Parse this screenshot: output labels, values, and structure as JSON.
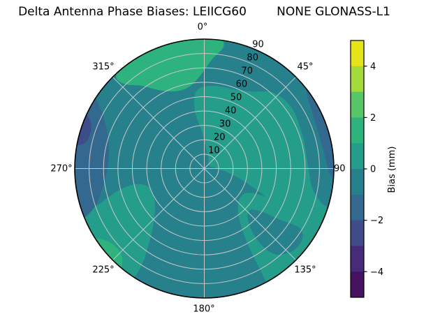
{
  "title": "Delta Antenna Phase Biases: LEIICG60        NONE GLONASS-L1",
  "polar": {
    "angular_labels": [
      "0°",
      "45°",
      "90",
      "135°",
      "180°",
      "225°",
      "270°",
      "315°"
    ],
    "radial_labels": [
      "10",
      "20",
      "30",
      "40",
      "50",
      "60",
      "70",
      "80",
      "90"
    ]
  },
  "colorbar": {
    "label": "Bias (mm)",
    "tick_labels": [
      "4",
      "2",
      "0",
      "−2",
      "−4"
    ],
    "tick_values": [
      4,
      2,
      0,
      -2,
      -4
    ],
    "range_mm": [
      -5,
      5
    ],
    "band_colors_top_to_bottom": [
      "#e5e419",
      "#a2da37",
      "#56c667",
      "#2eb37e",
      "#249d8a",
      "#27818d",
      "#33698e",
      "#3f4c8a",
      "#472a7a",
      "#46125f"
    ]
  },
  "chart_data": {
    "type": "polar_contour",
    "title": "Delta Antenna Phase Biases: LEIICG60        NONE GLONASS-L1",
    "value_label": "Bias (mm)",
    "value_range_mm": [
      -5,
      5
    ],
    "contour_level_step_mm": 1,
    "theta_direction": "clockwise",
    "theta_zero_location": "top",
    "theta_ticks_deg": [
      0,
      45,
      90,
      135,
      180,
      225,
      270,
      315
    ],
    "r_ticks": [
      10,
      20,
      30,
      40,
      50,
      60,
      70,
      80,
      90
    ],
    "r_range": [
      0,
      90
    ],
    "grid_color": "#c8c8c8",
    "outline_color": "#000000",
    "background_band": "-1to0",
    "band_colors": {
      "-5to-4": "#46125f",
      "-4to-3": "#472a7a",
      "-3to-2": "#3f4c8a",
      "-2to-1": "#33698e",
      "-1to0": "#27818d",
      "0to1": "#249d8a",
      "1to2": "#2eb37e",
      "2to3": "#56c667",
      "3to4": "#a2da37",
      "4to5": "#e5e419"
    },
    "regions": [
      {
        "band": "0to1",
        "name": "upper-right-interior",
        "points_az_r": [
          [
            352,
            50
          ],
          [
            357,
            56
          ],
          [
            8,
            58
          ],
          [
            22,
            59
          ],
          [
            32,
            63
          ],
          [
            42,
            71
          ],
          [
            55,
            74
          ],
          [
            72,
            72
          ],
          [
            88,
            72
          ],
          [
            100,
            76
          ],
          [
            106,
            84
          ],
          [
            109,
            93
          ],
          [
            118,
            93
          ],
          [
            121,
            78
          ],
          [
            119,
            62
          ],
          [
            115,
            48
          ],
          [
            111,
            36
          ],
          [
            106,
            26
          ],
          [
            99,
            16
          ],
          [
            90,
            9
          ],
          [
            76,
            5
          ],
          [
            58,
            4
          ],
          [
            38,
            5
          ],
          [
            18,
            9
          ],
          [
            4,
            15
          ],
          [
            356,
            26
          ],
          [
            351,
            38
          ]
        ]
      },
      {
        "band": "0to1",
        "name": "lower-right-sector",
        "points_az_r": [
          [
            113,
            93
          ],
          [
            125,
            93
          ],
          [
            137,
            93
          ],
          [
            150,
            93
          ],
          [
            151,
            78
          ],
          [
            150,
            60
          ],
          [
            146,
            44
          ],
          [
            138,
            35
          ],
          [
            127,
            32
          ],
          [
            118,
            36
          ],
          [
            114,
            50
          ],
          [
            112,
            70
          ]
        ]
      },
      {
        "band": "0to1",
        "name": "lower-left-sector",
        "points_az_r": [
          [
            214,
            93
          ],
          [
            226,
            93
          ],
          [
            238,
            93
          ],
          [
            248,
            90
          ],
          [
            252,
            74
          ],
          [
            256,
            60
          ],
          [
            257,
            48
          ],
          [
            252,
            41
          ],
          [
            242,
            40
          ],
          [
            231,
            44
          ],
          [
            222,
            53
          ],
          [
            216,
            66
          ],
          [
            213,
            80
          ]
        ]
      },
      {
        "band": "-1to0",
        "name": "lower-right-dark-patch",
        "points_az_r": [
          [
            122,
            78
          ],
          [
            124,
            64
          ],
          [
            127,
            50
          ],
          [
            132,
            43
          ],
          [
            139,
            46
          ],
          [
            143,
            56
          ],
          [
            143,
            68
          ],
          [
            140,
            78
          ],
          [
            133,
            84
          ],
          [
            126,
            84
          ]
        ]
      },
      {
        "band": "1to2",
        "name": "top-green-patch",
        "points_az_r": [
          [
            316,
            88
          ],
          [
            322,
            93
          ],
          [
            334,
            94
          ],
          [
            346,
            94
          ],
          [
            357,
            94
          ],
          [
            6,
            93
          ],
          [
            9,
            86
          ],
          [
            4,
            76
          ],
          [
            357,
            64
          ],
          [
            350,
            58
          ],
          [
            341,
            57
          ],
          [
            331,
            62
          ],
          [
            323,
            72
          ],
          [
            317,
            80
          ]
        ]
      },
      {
        "band": "1to2",
        "name": "bottom-left-green-sliver",
        "points_az_r": [
          [
            220,
            93
          ],
          [
            229,
            94
          ],
          [
            238,
            93
          ],
          [
            234,
            85
          ],
          [
            228,
            82
          ],
          [
            222,
            85
          ]
        ]
      },
      {
        "band": "-2to-1",
        "name": "left-edge-blue-patch",
        "points_az_r": [
          [
            248,
            93
          ],
          [
            258,
            93
          ],
          [
            270,
            93
          ],
          [
            282,
            93
          ],
          [
            294,
            93
          ],
          [
            303,
            93
          ],
          [
            300,
            83
          ],
          [
            293,
            74
          ],
          [
            283,
            68
          ],
          [
            271,
            67
          ],
          [
            259,
            72
          ],
          [
            251,
            80
          ]
        ]
      },
      {
        "band": "-3to-2",
        "name": "left-edge-navy-patch",
        "points_az_r": [
          [
            281,
            93
          ],
          [
            288,
            93
          ],
          [
            295,
            93
          ],
          [
            292,
            85
          ],
          [
            285,
            83
          ],
          [
            281,
            87
          ]
        ]
      },
      {
        "band": "-2to-1",
        "name": "right-edge-blue-sliver",
        "points_az_r": [
          [
            52,
            93
          ],
          [
            62,
            93
          ],
          [
            73,
            93
          ],
          [
            84,
            93
          ],
          [
            95,
            93
          ],
          [
            92,
            87
          ],
          [
            83,
            84
          ],
          [
            72,
            83
          ],
          [
            61,
            85
          ],
          [
            54,
            88
          ]
        ]
      }
    ]
  }
}
